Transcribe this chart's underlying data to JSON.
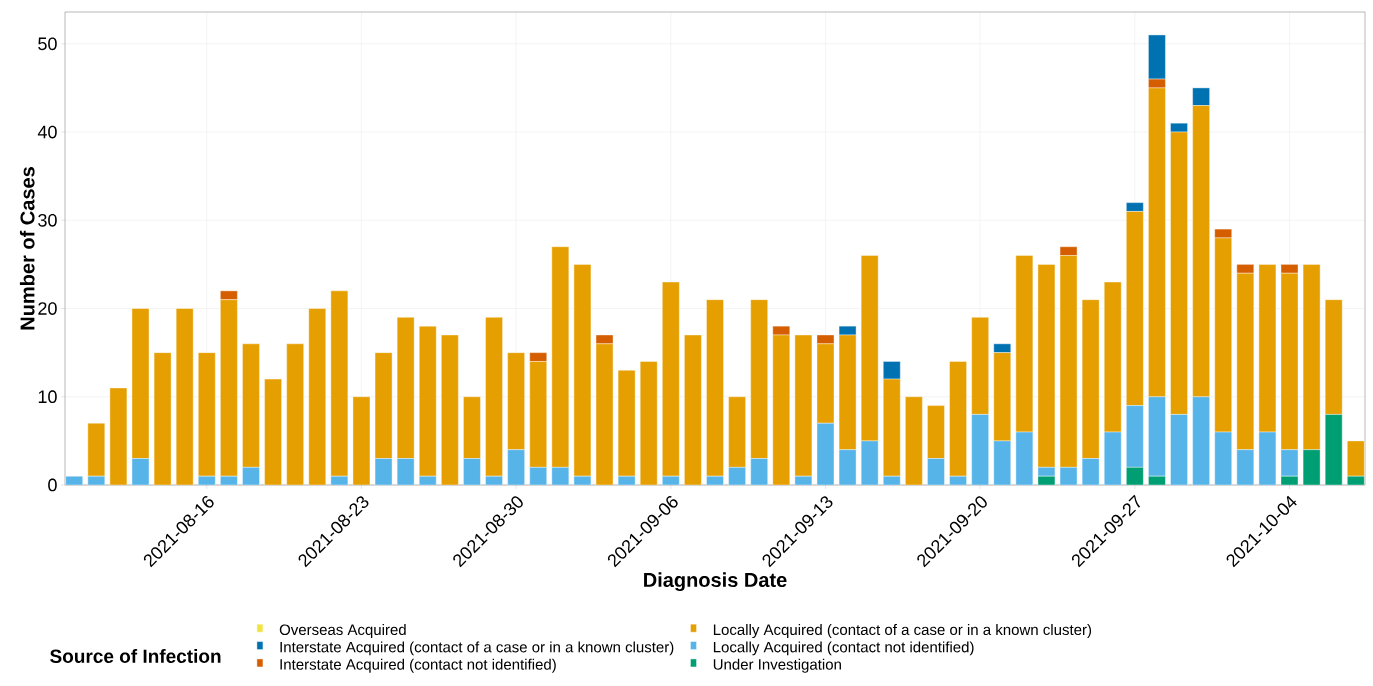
{
  "chart_data": {
    "type": "bar",
    "stacked": true,
    "xlabel": "Diagnosis Date",
    "ylabel": "Number of Cases",
    "legend_title": "Source of Infection",
    "legend": "bottom",
    "grid": true,
    "x": [
      "2021-08-10",
      "2021-08-11",
      "2021-08-12",
      "2021-08-13",
      "2021-08-14",
      "2021-08-15",
      "2021-08-16",
      "2021-08-17",
      "2021-08-18",
      "2021-08-19",
      "2021-08-20",
      "2021-08-21",
      "2021-08-22",
      "2021-08-23",
      "2021-08-24",
      "2021-08-25",
      "2021-08-26",
      "2021-08-27",
      "2021-08-28",
      "2021-08-29",
      "2021-08-30",
      "2021-08-31",
      "2021-09-01",
      "2021-09-02",
      "2021-09-03",
      "2021-09-04",
      "2021-09-05",
      "2021-09-06",
      "2021-09-07",
      "2021-09-08",
      "2021-09-09",
      "2021-09-10",
      "2021-09-11",
      "2021-09-12",
      "2021-09-13",
      "2021-09-14",
      "2021-09-15",
      "2021-09-16",
      "2021-09-17",
      "2021-09-18",
      "2021-09-19",
      "2021-09-20",
      "2021-09-21",
      "2021-09-22",
      "2021-09-23",
      "2021-09-24",
      "2021-09-25",
      "2021-09-26",
      "2021-09-27",
      "2021-09-28",
      "2021-09-29",
      "2021-09-30",
      "2021-10-01",
      "2021-10-02",
      "2021-10-03",
      "2021-10-04",
      "2021-10-05",
      "2021-10-06",
      "2021-10-07"
    ],
    "xlim": [
      "2021-08-09T14:00",
      "2021-10-07T10:00"
    ],
    "xticks": [
      "2021-08-16",
      "2021-08-23",
      "2021-08-30",
      "2021-09-06",
      "2021-09-13",
      "2021-09-20",
      "2021-09-27",
      "2021-10-04"
    ],
    "ylim": [
      0,
      53.6
    ],
    "yticks": [
      0,
      10,
      20,
      30,
      40,
      50
    ],
    "series": [
      {
        "name": "Under Investigation",
        "color": "#009e73",
        "values": [
          0,
          0,
          0,
          0,
          0,
          0,
          0,
          0,
          0,
          0,
          0,
          0,
          0,
          0,
          0,
          0,
          0,
          0,
          0,
          0,
          0,
          0,
          0,
          0,
          0,
          0,
          0,
          0,
          0,
          0,
          0,
          0,
          0,
          0,
          0,
          0,
          0,
          0,
          0,
          0,
          0,
          0,
          0,
          0,
          1,
          0,
          0,
          0,
          2,
          1,
          0,
          0,
          0,
          0,
          0,
          1,
          4,
          8,
          1
        ]
      },
      {
        "name": "Locally Acquired (contact not identified)",
        "color": "#56b4e9",
        "values": [
          1,
          1,
          0,
          3,
          0,
          0,
          1,
          1,
          2,
          0,
          0,
          0,
          1,
          0,
          3,
          3,
          1,
          0,
          3,
          1,
          4,
          2,
          2,
          1,
          0,
          1,
          0,
          1,
          0,
          1,
          2,
          3,
          0,
          1,
          7,
          4,
          5,
          1,
          0,
          3,
          1,
          8,
          5,
          6,
          1,
          2,
          3,
          6,
          7,
          9,
          8,
          10,
          6,
          4,
          6,
          3,
          0,
          0,
          0
        ]
      },
      {
        "name": "Locally Acquired (contact of a case or in a known cluster)",
        "color": "#e69f00",
        "values": [
          0,
          6,
          11,
          17,
          15,
          20,
          14,
          20,
          14,
          12,
          16,
          20,
          21,
          10,
          12,
          16,
          17,
          17,
          7,
          18,
          11,
          12,
          25,
          24,
          16,
          12,
          14,
          22,
          17,
          20,
          8,
          18,
          17,
          16,
          9,
          13,
          21,
          11,
          10,
          6,
          13,
          11,
          10,
          20,
          23,
          24,
          18,
          17,
          22,
          35,
          32,
          33,
          22,
          20,
          19,
          20,
          21,
          13,
          4
        ]
      },
      {
        "name": "Interstate Acquired (contact not identified)",
        "color": "#d55e00",
        "values": [
          0,
          0,
          0,
          0,
          0,
          0,
          0,
          1,
          0,
          0,
          0,
          0,
          0,
          0,
          0,
          0,
          0,
          0,
          0,
          0,
          0,
          1,
          0,
          0,
          1,
          0,
          0,
          0,
          0,
          0,
          0,
          0,
          1,
          0,
          1,
          0,
          0,
          0,
          0,
          0,
          0,
          0,
          0,
          0,
          0,
          1,
          0,
          0,
          0,
          1,
          0,
          0,
          1,
          1,
          0,
          1,
          0,
          0,
          0
        ]
      },
      {
        "name": "Interstate Acquired (contact of a case or in a known cluster)",
        "color": "#0072b2",
        "values": [
          0,
          0,
          0,
          0,
          0,
          0,
          0,
          0,
          0,
          0,
          0,
          0,
          0,
          0,
          0,
          0,
          0,
          0,
          0,
          0,
          0,
          0,
          0,
          0,
          0,
          0,
          0,
          0,
          0,
          0,
          0,
          0,
          0,
          0,
          0,
          1,
          0,
          2,
          0,
          0,
          0,
          0,
          1,
          0,
          0,
          0,
          0,
          0,
          1,
          5,
          1,
          2,
          0,
          0,
          0,
          0,
          0,
          0,
          0
        ]
      },
      {
        "name": "Overseas Acquired",
        "color": "#f0e442",
        "values": [
          0,
          0,
          0,
          0,
          0,
          0,
          0,
          0,
          0,
          0,
          0,
          0,
          0,
          0,
          0,
          0,
          0,
          0,
          0,
          0,
          0,
          0,
          0,
          0,
          0,
          0,
          0,
          0,
          0,
          0,
          0,
          0,
          0,
          0,
          0,
          0,
          0,
          0,
          0,
          0,
          0,
          0,
          0,
          0,
          0,
          0,
          0,
          0,
          0,
          0,
          0,
          0,
          0,
          0,
          0,
          0,
          0,
          0,
          0
        ]
      }
    ]
  }
}
